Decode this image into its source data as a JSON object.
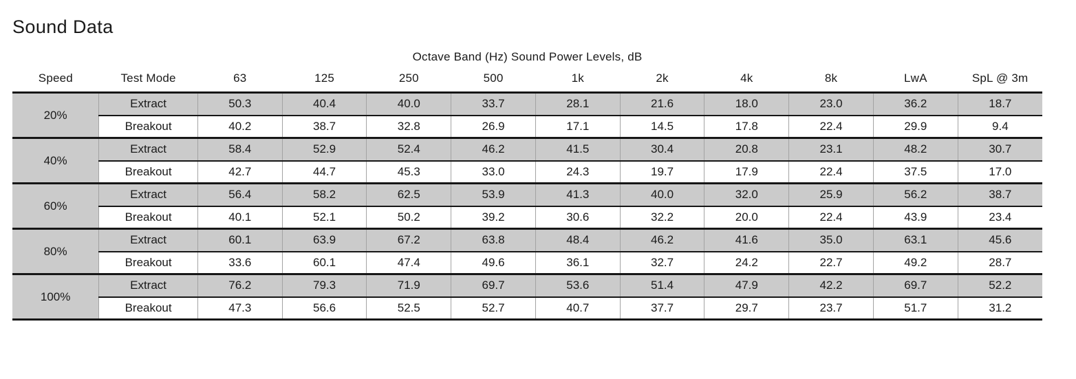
{
  "page": {
    "title": "Sound Data"
  },
  "table": {
    "subtitle": "Octave Band (Hz) Sound Power Levels, dB",
    "columns": [
      "Speed",
      "Test Mode",
      "63",
      "125",
      "250",
      "500",
      "1k",
      "2k",
      "4k",
      "8k",
      "LwA",
      "SpL @ 3m"
    ],
    "colors": {
      "shaded_row": "#cbcbcb",
      "rule": "#161616",
      "column_grid": "#a3a3a3"
    },
    "groups": [
      {
        "speed": "20%",
        "rows": [
          {
            "mode": "Extract",
            "values": [
              "50.3",
              "40.4",
              "40.0",
              "33.7",
              "28.1",
              "21.6",
              "18.0",
              "23.0",
              "36.2",
              "18.7"
            ]
          },
          {
            "mode": "Breakout",
            "values": [
              "40.2",
              "38.7",
              "32.8",
              "26.9",
              "17.1",
              "14.5",
              "17.8",
              "22.4",
              "29.9",
              "9.4"
            ]
          }
        ]
      },
      {
        "speed": "40%",
        "rows": [
          {
            "mode": "Extract",
            "values": [
              "58.4",
              "52.9",
              "52.4",
              "46.2",
              "41.5",
              "30.4",
              "20.8",
              "23.1",
              "48.2",
              "30.7"
            ]
          },
          {
            "mode": "Breakout",
            "values": [
              "42.7",
              "44.7",
              "45.3",
              "33.0",
              "24.3",
              "19.7",
              "17.9",
              "22.4",
              "37.5",
              "17.0"
            ]
          }
        ]
      },
      {
        "speed": "60%",
        "rows": [
          {
            "mode": "Extract",
            "values": [
              "56.4",
              "58.2",
              "62.5",
              "53.9",
              "41.3",
              "40.0",
              "32.0",
              "25.9",
              "56.2",
              "38.7"
            ]
          },
          {
            "mode": "Breakout",
            "values": [
              "40.1",
              "52.1",
              "50.2",
              "39.2",
              "30.6",
              "32.2",
              "20.0",
              "22.4",
              "43.9",
              "23.4"
            ]
          }
        ]
      },
      {
        "speed": "80%",
        "rows": [
          {
            "mode": "Extract",
            "values": [
              "60.1",
              "63.9",
              "67.2",
              "63.8",
              "48.4",
              "46.2",
              "41.6",
              "35.0",
              "63.1",
              "45.6"
            ]
          },
          {
            "mode": "Breakout",
            "values": [
              "33.6",
              "60.1",
              "47.4",
              "49.6",
              "36.1",
              "32.7",
              "24.2",
              "22.7",
              "49.2",
              "28.7"
            ]
          }
        ]
      },
      {
        "speed": "100%",
        "rows": [
          {
            "mode": "Extract",
            "values": [
              "76.2",
              "79.3",
              "71.9",
              "69.7",
              "53.6",
              "51.4",
              "47.9",
              "42.2",
              "69.7",
              "52.2"
            ]
          },
          {
            "mode": "Breakout",
            "values": [
              "47.3",
              "56.6",
              "52.5",
              "52.7",
              "40.7",
              "37.7",
              "29.7",
              "23.7",
              "51.7",
              "31.2"
            ]
          }
        ]
      }
    ]
  }
}
